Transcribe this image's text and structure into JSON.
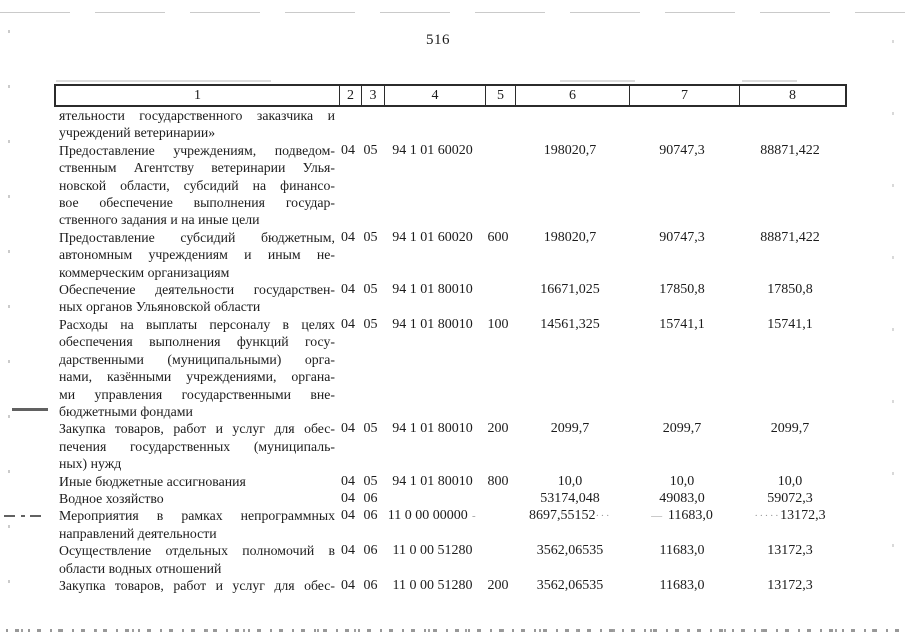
{
  "page": {
    "number": "516"
  },
  "header": {
    "columns": [
      "1",
      "2",
      "3",
      "4",
      "5",
      "6",
      "7",
      "8"
    ]
  },
  "table": {
    "rows": [
      {
        "lines": [
          "ятельности государственного заказчика и",
          "учреждений ветеринарии»"
        ],
        "c2": "",
        "c3": "",
        "c4": "",
        "c5": "",
        "c6": "",
        "c7": "",
        "c8": ""
      },
      {
        "lines": [
          "Предоставление учреждениям, подведом-",
          "ственным Агентству ветеринарии Улья-",
          "новской области, субсидий на финансо-",
          "вое обеспечение выполнения государ-",
          "ственного задания и на иные цели"
        ],
        "c2": "04",
        "c3": "05",
        "c4": "94 1 01 60020",
        "c5": "",
        "c6": "198020,7",
        "c7": "90747,3",
        "c8": "88871,422"
      },
      {
        "lines": [
          "Предоставление субсидий бюджетным,",
          "автономным учреждениям и иным не-",
          "коммерческим организациям"
        ],
        "c2": "04",
        "c3": "05",
        "c4": "94 1 01 60020",
        "c5": "600",
        "c6": "198020,7",
        "c7": "90747,3",
        "c8": "88871,422"
      },
      {
        "lines": [
          "Обеспечение деятельности государствен-",
          "ных органов Ульяновской области"
        ],
        "c2": "04",
        "c3": "05",
        "c4": "94 1 01 80010",
        "c5": "",
        "c6": "16671,025",
        "c7": "17850,8",
        "c8": "17850,8"
      },
      {
        "lines": [
          "Расходы на выплаты персоналу в целях",
          "обеспечения выполнения функций госу-",
          "дарственными (муниципальными) орга-",
          "нами, казёнными учреждениями, органа-",
          "ми управления государственными вне-",
          "бюджетными фондами"
        ],
        "c2": "04",
        "c3": "05",
        "c4": "94 1 01 80010",
        "c5": "100",
        "c6": "14561,325",
        "c7": "15741,1",
        "c8": "15741,1"
      },
      {
        "lines": [
          "Закупка товаров, работ и услуг для обес-",
          "печения государственных (муниципаль-",
          "ных) нужд"
        ],
        "c2": "04",
        "c3": "05",
        "c4": "94 1 01 80010",
        "c5": "200",
        "c6": "2099,7",
        "c7": "2099,7",
        "c8": "2099,7"
      },
      {
        "lines": [
          "Иные бюджетные ассигнования"
        ],
        "c2": "04",
        "c3": "05",
        "c4": "94 1 01 80010",
        "c5": "800",
        "c6": "10,0",
        "c7": "10,0",
        "c8": "10,0"
      },
      {
        "lines": [
          "Водное хозяйство"
        ],
        "c2": "04",
        "c3": "06",
        "c4": "",
        "c5": "",
        "c6": "53174,048",
        "c7": "49083,0",
        "c8": "59072,3"
      },
      {
        "lines": [
          "Мероприятия в рамках непрограммных",
          "направлений деятельности"
        ],
        "c2": "04",
        "c3": "06",
        "c4": "11 0 00 00000",
        "c5": "",
        "c6": "8697,55152",
        "c7": "11683,0",
        "c8": "13172,3",
        "art": {
          "c4_after": " -",
          "c6_after": "···",
          "c7_before": "— ",
          "c8_before": "·····"
        }
      },
      {
        "lines": [
          "Осуществление отдельных полномочий в",
          "области водных отношений"
        ],
        "c2": "04",
        "c3": "06",
        "c4": "11 0 00 51280",
        "c5": "",
        "c6": "3562,06535",
        "c7": "11683,0",
        "c8": "13172,3"
      },
      {
        "lines": [
          "Закупка товаров, работ и услуг для обес-"
        ],
        "justify_last": true,
        "c2": "04",
        "c3": "06",
        "c4": "11 0 00 51280",
        "c5": "200",
        "c6": "3562,06535",
        "c7": "11683,0",
        "c8": "13172,3"
      }
    ]
  }
}
